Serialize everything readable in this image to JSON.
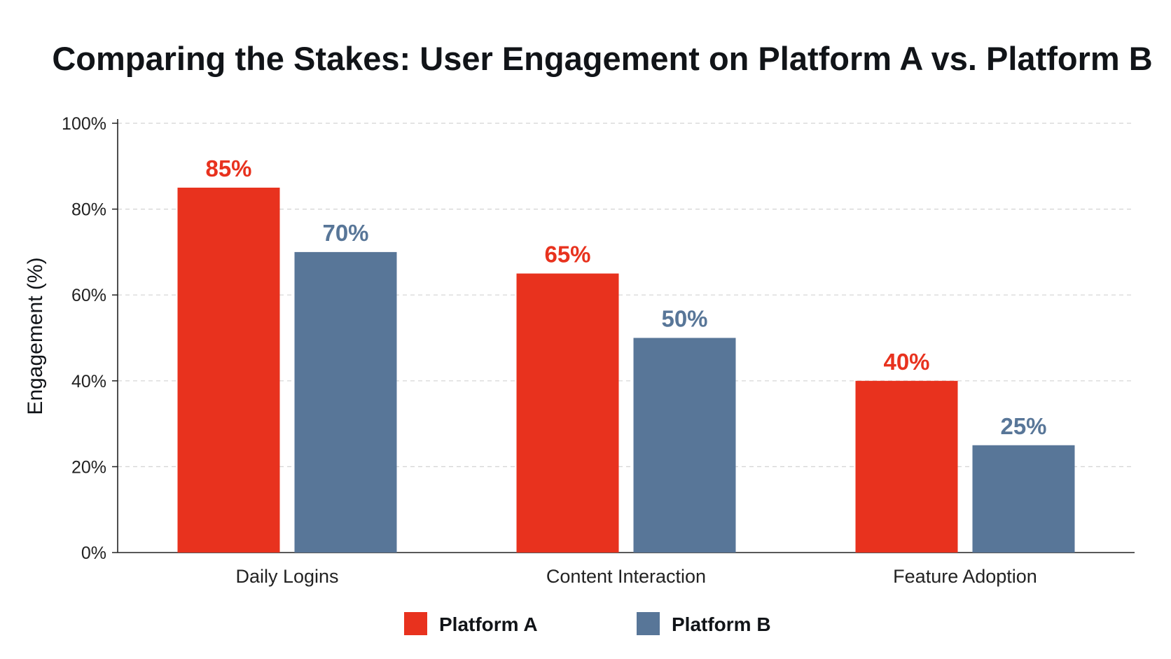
{
  "chart_data": {
    "type": "bar",
    "title": "Comparing the Stakes: User Engagement on Platform A vs. Platform B",
    "xlabel": "",
    "ylabel": "Engagement (%)",
    "categories": [
      "Daily Logins",
      "Content Interaction",
      "Feature Adoption"
    ],
    "series": [
      {
        "name": "Platform A",
        "color": "#e8321e",
        "values": [
          85,
          65,
          40
        ],
        "labels": [
          "85%",
          "65%",
          "40%"
        ]
      },
      {
        "name": "Platform B",
        "color": "#587698",
        "values": [
          70,
          50,
          25
        ],
        "labels": [
          "70%",
          "50%",
          "25%"
        ]
      }
    ],
    "ylim": [
      0,
      100
    ],
    "yticks": [
      0,
      20,
      40,
      60,
      80,
      100
    ],
    "ytick_labels": [
      "0%",
      "20%",
      "40%",
      "60%",
      "80%",
      "100%"
    ],
    "grid": true,
    "legend_position": "bottom-center"
  }
}
